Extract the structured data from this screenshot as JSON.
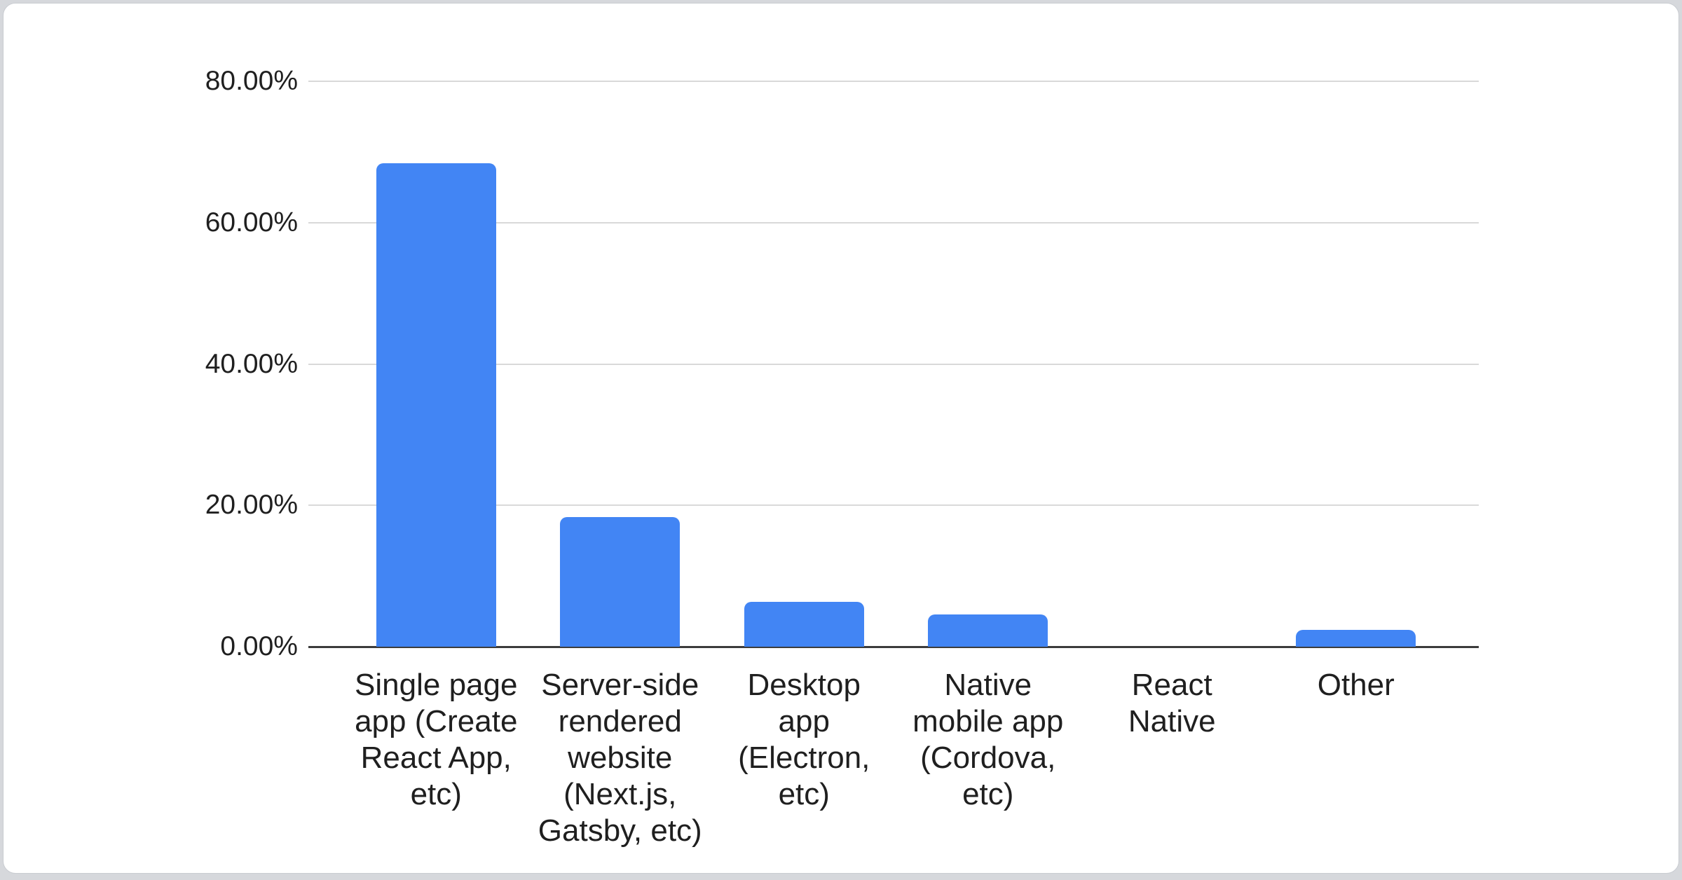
{
  "chart_data": {
    "type": "bar",
    "title": "",
    "xlabel": "",
    "ylabel": "",
    "unit": "%",
    "ylim": [
      0,
      80
    ],
    "grid": true,
    "legend_position": "none",
    "categories": [
      "Single page app (Create React App, etc)",
      "Server-side rendered website (Next.js, Gatsby, etc)",
      "Desktop app (Electron, etc)",
      "Native mobile app (Cordova, etc)",
      "React Native",
      "Other"
    ],
    "category_display_lines": [
      "Single page\napp (Create\nReact App,\netc)",
      "Server-side\nrendered\nwebsite\n(Next.js,\nGatsby, etc)",
      "Desktop\napp\n(Electron,\netc)",
      "Native\nmobile app\n(Cordova,\netc)",
      "React\nNative",
      "Other"
    ],
    "values": [
      68.4,
      18.3,
      6.3,
      4.6,
      0,
      2.4
    ],
    "y_ticks": [
      {
        "value": 80,
        "label": "80.00%"
      },
      {
        "value": 60,
        "label": "60.00%"
      },
      {
        "value": 40,
        "label": "40.00%"
      },
      {
        "value": 20,
        "label": "20.00%"
      },
      {
        "value": 0,
        "label": "0.00%"
      }
    ],
    "colors": {
      "bar": "#4285f4",
      "gridline": "#d9d9d9",
      "axis": "#3c3c3c",
      "text": "#1f1f1f",
      "card_background": "#ffffff",
      "card_border": "#c9ccd1",
      "page_background": "#d6d8dc"
    }
  }
}
